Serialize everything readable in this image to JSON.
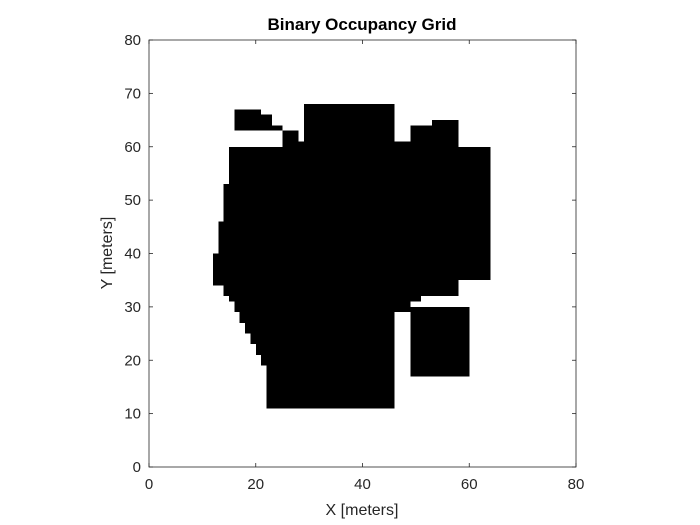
{
  "chart_data": {
    "type": "heatmap",
    "title": "Binary Occupancy Grid",
    "xlabel": "X [meters]",
    "ylabel": "Y [meters]",
    "xlim": [
      0,
      80
    ],
    "ylim": [
      0,
      80
    ],
    "xticks": [
      0,
      20,
      40,
      60,
      80
    ],
    "yticks": [
      0,
      10,
      20,
      30,
      40,
      50,
      60,
      70,
      80
    ],
    "grid": false,
    "cell_size": 1,
    "occupied_color": "#000000",
    "free_color": "#ffffff",
    "occupied_regions": [
      {
        "x": [
          16,
          21
        ],
        "y": [
          63,
          67
        ]
      },
      {
        "x": [
          21,
          23
        ],
        "y": [
          63,
          66
        ]
      },
      {
        "x": [
          23,
          25
        ],
        "y": [
          63,
          64
        ]
      },
      {
        "x": [
          25,
          28
        ],
        "y": [
          60,
          63
        ]
      },
      {
        "x": [
          28,
          29
        ],
        "y": [
          59,
          61
        ]
      },
      {
        "x": [
          29,
          46
        ],
        "y": [
          60,
          68
        ]
      },
      {
        "x": [
          46,
          49
        ],
        "y": [
          60,
          61
        ]
      },
      {
        "x": [
          49,
          53
        ],
        "y": [
          60,
          64
        ]
      },
      {
        "x": [
          53,
          58
        ],
        "y": [
          60,
          65
        ]
      },
      {
        "x": [
          15,
          64
        ],
        "y": [
          35,
          60
        ]
      },
      {
        "x": [
          14,
          15
        ],
        "y": [
          40,
          53
        ]
      },
      {
        "x": [
          13,
          14
        ],
        "y": [
          40,
          46
        ]
      },
      {
        "x": [
          12,
          15
        ],
        "y": [
          34,
          40
        ]
      },
      {
        "x": [
          14,
          58
        ],
        "y": [
          32,
          35
        ]
      },
      {
        "x": [
          15,
          51
        ],
        "y": [
          31,
          32
        ]
      },
      {
        "x": [
          16,
          49
        ],
        "y": [
          29,
          31
        ]
      },
      {
        "x": [
          17,
          46
        ],
        "y": [
          27,
          29
        ]
      },
      {
        "x": [
          18,
          46
        ],
        "y": [
          25,
          27
        ]
      },
      {
        "x": [
          19,
          46
        ],
        "y": [
          23,
          25
        ]
      },
      {
        "x": [
          20,
          46
        ],
        "y": [
          21,
          23
        ]
      },
      {
        "x": [
          21,
          46
        ],
        "y": [
          19,
          21
        ]
      },
      {
        "x": [
          22,
          46
        ],
        "y": [
          11,
          19
        ]
      },
      {
        "x": [
          49,
          60
        ],
        "y": [
          17,
          30
        ]
      }
    ]
  }
}
